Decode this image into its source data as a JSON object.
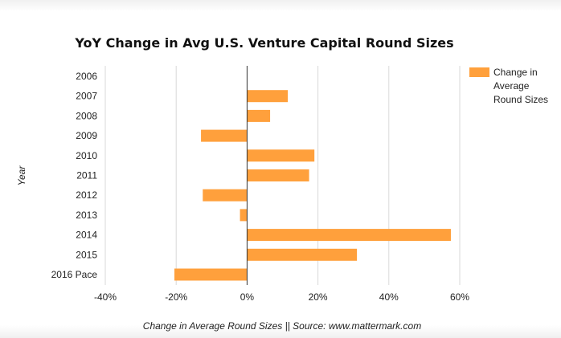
{
  "chart_data": {
    "type": "bar",
    "orientation": "horizontal",
    "title": "YoY Change in Avg U.S. Venture Capital Round Sizes",
    "xlabel": "Change in Average Round Sizes || Source: www.mattermark.com",
    "ylabel": "Year",
    "categories": [
      "2006",
      "2007",
      "2008",
      "2009",
      "2010",
      "2011",
      "2012",
      "2013",
      "2014",
      "2015",
      "2016 Pace"
    ],
    "series": [
      {
        "name": "Change in Average Round Sizes",
        "values": [
          0,
          11.5,
          6.5,
          -13,
          19,
          17.5,
          -12.5,
          -2,
          57.5,
          31,
          -20.5
        ],
        "color": "#ffa03c"
      }
    ],
    "xlim": [
      -40,
      60
    ],
    "x_ticks": [
      "-40%",
      "-20%",
      "0%",
      "20%",
      "40%",
      "60%"
    ],
    "x_tick_values": [
      -40,
      -20,
      0,
      20,
      40,
      60
    ],
    "grid": true,
    "legend_position": "right",
    "legend_lines": [
      "Change in",
      "Average",
      "Round Sizes"
    ]
  }
}
